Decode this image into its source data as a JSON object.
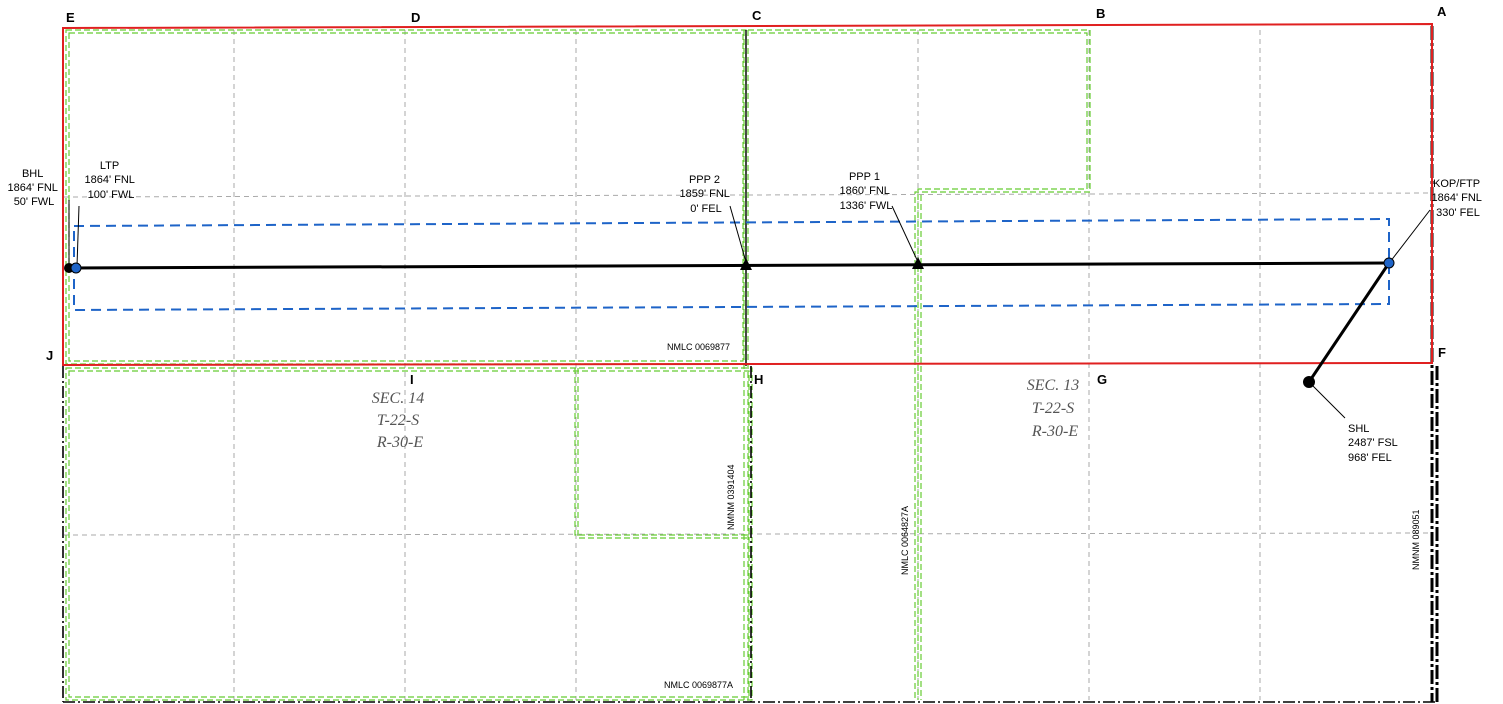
{
  "corners": {
    "A": "A",
    "B": "B",
    "C": "C",
    "D": "D",
    "E": "E",
    "F": "F",
    "G": "G",
    "H": "H",
    "I": "I",
    "J": "J"
  },
  "points": {
    "bhl": {
      "lines": [
        "BHL",
        "1864' FNL",
        "50' FWL"
      ]
    },
    "ltp": {
      "lines": [
        "LTP",
        "1864' FNL",
        "100' FWL"
      ]
    },
    "ppp2": {
      "lines": [
        "PPP 2",
        "1859' FNL",
        "0' FEL"
      ]
    },
    "ppp1": {
      "lines": [
        "PPP 1",
        "1860' FNL",
        "1336' FWL"
      ]
    },
    "kop": {
      "lines": [
        "KOP/FTP",
        "1864' FNL",
        "330' FEL"
      ]
    },
    "shl": {
      "lines": [
        "SHL",
        "2487' FSL",
        "968' FEL"
      ]
    }
  },
  "sections": {
    "sec14": {
      "lines": [
        "SEC. 14",
        "T-22-S",
        "R-30-E"
      ]
    },
    "sec13": {
      "lines": [
        "SEC. 13",
        "T-22-S",
        "R-30-E"
      ]
    }
  },
  "leases": {
    "nmlc_0069877": "NMLC 0069877",
    "nmnm_0391404": "NMNM 0391404",
    "nmlc_0064827a": "NMLC 0064827A",
    "nmnm_089051": "NMNM 089051",
    "nmlc_0069877a": "NMLC 0069877A"
  },
  "colors": {
    "unit_boundary": "#e02020",
    "lease_line": "#66cc33",
    "setback": "#1e64c8",
    "grid": "#aaaaaa",
    "wellbore": "#000000",
    "point_marker": "#1e64c8"
  }
}
